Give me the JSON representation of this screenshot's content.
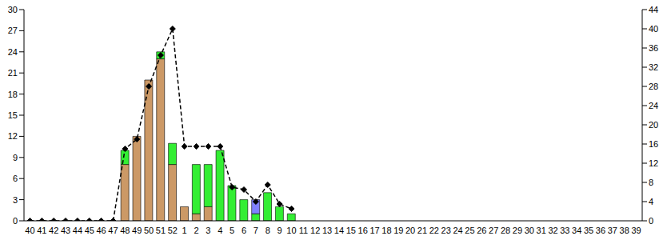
{
  "chart_data": {
    "type": "bar",
    "stacked": true,
    "grid": false,
    "categories": [
      "40",
      "41",
      "42",
      "43",
      "44",
      "45",
      "46",
      "47",
      "48",
      "49",
      "50",
      "51",
      "52",
      "1",
      "2",
      "3",
      "4",
      "5",
      "6",
      "7",
      "8",
      "9",
      "10",
      "11",
      "12",
      "13",
      "14",
      "15",
      "16",
      "17",
      "18",
      "19",
      "20",
      "21",
      "22",
      "23",
      "24",
      "25",
      "26",
      "27",
      "28",
      "29",
      "30",
      "31",
      "32",
      "33",
      "34",
      "35",
      "36",
      "37",
      "38",
      "39"
    ],
    "ylim": [
      0,
      30
    ],
    "yticks": [
      0,
      3,
      6,
      9,
      12,
      15,
      18,
      21,
      24,
      27,
      30
    ],
    "y2lim": [
      0,
      44
    ],
    "y2ticks": [
      0,
      4,
      8,
      12,
      16,
      20,
      24,
      28,
      32,
      36,
      40,
      44
    ],
    "series": [
      {
        "type": "bar",
        "color": "#cc9966",
        "values": [
          0,
          0,
          0,
          0,
          0,
          0,
          0,
          0,
          8,
          12,
          20,
          23,
          8,
          2,
          1,
          2,
          0,
          0,
          0,
          0,
          0,
          0,
          0,
          0,
          0,
          0,
          0,
          0,
          0,
          0,
          0,
          0,
          0,
          0,
          0,
          0,
          0,
          0,
          0,
          0,
          0,
          0,
          0,
          0,
          0,
          0,
          0,
          0,
          0,
          0,
          0,
          0
        ]
      },
      {
        "type": "bar",
        "color": "#33ee33",
        "values": [
          0,
          0,
          0,
          0,
          0,
          0,
          0,
          0,
          2,
          0,
          0,
          1,
          3,
          0,
          7,
          6,
          10,
          5,
          3,
          1,
          4,
          2,
          1,
          0,
          0,
          0,
          0,
          0,
          0,
          0,
          0,
          0,
          0,
          0,
          0,
          0,
          0,
          0,
          0,
          0,
          0,
          0,
          0,
          0,
          0,
          0,
          0,
          0,
          0,
          0,
          0,
          0
        ]
      },
      {
        "type": "bar",
        "color": "#8080ff",
        "values": [
          0,
          0,
          0,
          0,
          0,
          0,
          0,
          0,
          0,
          0,
          0,
          0,
          0,
          0,
          0,
          0,
          0,
          0,
          0,
          2,
          0,
          0,
          0,
          0,
          0,
          0,
          0,
          0,
          0,
          0,
          0,
          0,
          0,
          0,
          0,
          0,
          0,
          0,
          0,
          0,
          0,
          0,
          0,
          0,
          0,
          0,
          0,
          0,
          0,
          0,
          0,
          0
        ]
      },
      {
        "type": "line",
        "axis": "y2",
        "color": "#000000",
        "marker": "diamond",
        "line_style": "dashed",
        "values": [
          0,
          0,
          0,
          0,
          0,
          0,
          0,
          0,
          15,
          17,
          28,
          34.5,
          40,
          15.5,
          15.5,
          15.5,
          15.5,
          7,
          6.5,
          4,
          7.5,
          3.5,
          2.5,
          null,
          null,
          null,
          null,
          null,
          null,
          null,
          null,
          null,
          null,
          null,
          null,
          null,
          null,
          null,
          null,
          null,
          null,
          null,
          null,
          null,
          null,
          null,
          null,
          null,
          null,
          null,
          null,
          null
        ]
      }
    ]
  }
}
